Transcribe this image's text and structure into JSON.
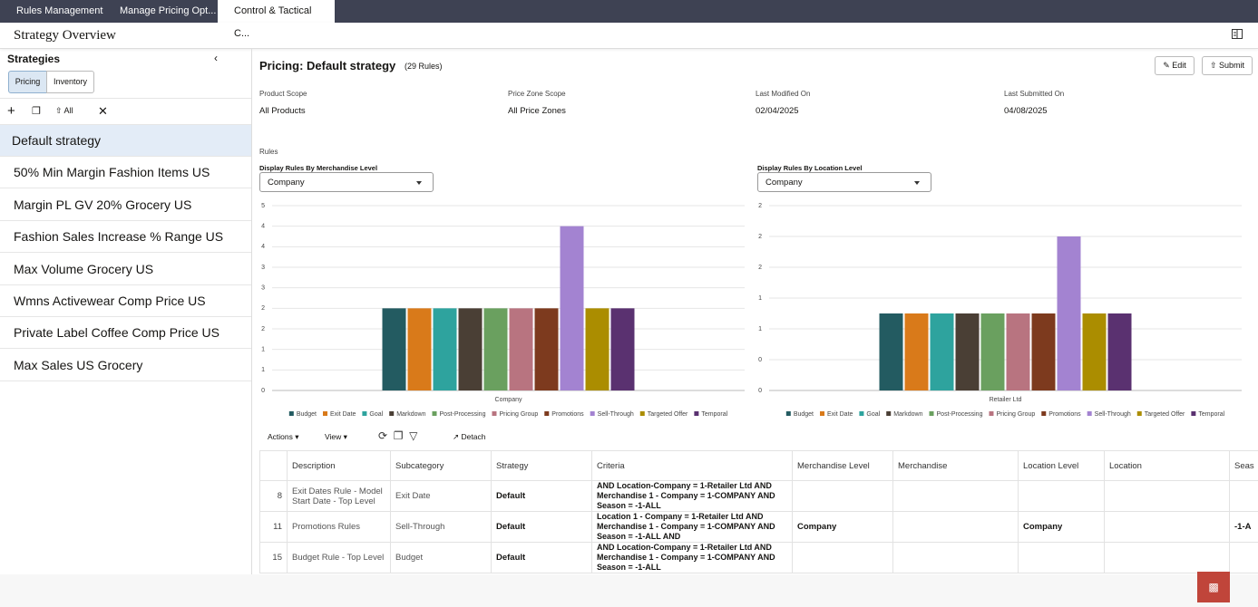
{
  "tabs": [
    "Rules Management",
    "Manage Pricing Opt...",
    "Control & Tactical C..."
  ],
  "page_title": "Strategy Overview",
  "sidebar": {
    "title": "Strategies",
    "toggles": [
      "Pricing",
      "Inventory"
    ],
    "toolbar_label": "All",
    "strategies": [
      "Default strategy",
      "50% Min Margin Fashion Items US",
      "Margin PL GV 20% Grocery US",
      "Fashion Sales Increase % Range US",
      "Max Volume Grocery US",
      "Wmns Activewear Comp Price US",
      "Private Label Coffee Comp Price US",
      "Max Sales US Grocery"
    ]
  },
  "main": {
    "title": "Pricing: Default strategy",
    "rule_count": "(29 Rules)",
    "buttons": [
      "Edit",
      "Submit"
    ],
    "fields": [
      {
        "label": "Product Scope",
        "value": "All Products"
      },
      {
        "label": "Price Zone Scope",
        "value": "All Price Zones"
      },
      {
        "label": "Last Modified On",
        "value": "02/04/2025"
      },
      {
        "label": "Last Submitted On",
        "value": "04/08/2025"
      }
    ],
    "rules_label": "Rules",
    "filters": [
      {
        "label": "Display Rules By Merchandise Level",
        "value": "Company"
      },
      {
        "label": "Display Rules By Location Level",
        "value": "Company"
      }
    ]
  },
  "chart_data": [
    {
      "type": "bar",
      "categories": [
        "Company"
      ],
      "ylim": [
        0,
        4.5
      ],
      "grid": true,
      "yticks": [
        0,
        {
          "value": 0.5,
          "label": "1"
        },
        1,
        {
          "value": 1.5,
          "label": "2"
        },
        2,
        {
          "value": 2.5,
          "label": "3"
        },
        3,
        {
          "value": 3.5,
          "label": "4"
        },
        4,
        {
          "value": 4.5,
          "label": "5"
        }
      ],
      "series": [
        {
          "name": "Budget",
          "color": "#235b61",
          "values": [
            2
          ]
        },
        {
          "name": "Exit Date",
          "color": "#d97a1a",
          "values": [
            2
          ]
        },
        {
          "name": "Goal",
          "color": "#2ea39e",
          "values": [
            2
          ]
        },
        {
          "name": "Markdown",
          "color": "#4a3f35",
          "values": [
            2
          ]
        },
        {
          "name": "Post-Processing",
          "color": "#6aa05f",
          "values": [
            2
          ]
        },
        {
          "name": "Pricing Group",
          "color": "#b87480",
          "values": [
            2
          ]
        },
        {
          "name": "Promotions",
          "color": "#7d3a1e",
          "values": [
            2
          ]
        },
        {
          "name": "Sell-Through",
          "color": "#a383d1",
          "values": [
            4
          ]
        },
        {
          "name": "Targeted Offer",
          "color": "#ab8d00",
          "values": [
            2
          ]
        },
        {
          "name": "Temporal",
          "color": "#5a3170",
          "values": [
            2
          ]
        }
      ]
    },
    {
      "type": "bar",
      "categories": [
        "Retailer Ltd"
      ],
      "ylim": [
        0,
        2.4
      ],
      "grid": true,
      "yticks": [
        0,
        {
          "value": 0.4,
          "label": "0"
        },
        {
          "value": 0.8,
          "label": "1"
        },
        {
          "value": 1.2,
          "label": "1"
        },
        {
          "value": 1.6,
          "label": "2"
        },
        2,
        {
          "value": 2.4,
          "label": "2"
        }
      ],
      "series": [
        {
          "name": "Budget",
          "color": "#235b61",
          "values": [
            1
          ]
        },
        {
          "name": "Exit Date",
          "color": "#d97a1a",
          "values": [
            1
          ]
        },
        {
          "name": "Goal",
          "color": "#2ea39e",
          "values": [
            1
          ]
        },
        {
          "name": "Markdown",
          "color": "#4a3f35",
          "values": [
            1
          ]
        },
        {
          "name": "Post-Processing",
          "color": "#6aa05f",
          "values": [
            1
          ]
        },
        {
          "name": "Pricing Group",
          "color": "#b87480",
          "values": [
            1
          ]
        },
        {
          "name": "Promotions",
          "color": "#7d3a1e",
          "values": [
            1
          ]
        },
        {
          "name": "Sell-Through",
          "color": "#a383d1",
          "values": [
            2
          ]
        },
        {
          "name": "Targeted Offer",
          "color": "#ab8d00",
          "values": [
            1
          ]
        },
        {
          "name": "Temporal",
          "color": "#5a3170",
          "values": [
            1
          ]
        }
      ]
    }
  ],
  "table": {
    "toolbar": [
      "Actions",
      "View",
      "Detach"
    ],
    "columns": [
      "Description",
      "Subcategory",
      "Strategy",
      "Criteria",
      "Merchandise Level",
      "Merchandise",
      "Location Level",
      "Location",
      "Seas"
    ],
    "rows": [
      {
        "id": 8,
        "description": "Exit Dates Rule - Model Start Date - Top Level",
        "subcategory": "Exit Date",
        "strategy": "Default",
        "criteria": "AND Location-Company = 1-Retailer Ltd AND Merchandise 1 - Company = 1-COMPANY AND Season = -1-ALL"
      },
      {
        "id": 11,
        "description": "Promotions Rules",
        "subcategory": "Sell-Through",
        "strategy": "Default",
        "criteria": "Location 1 - Company = 1-Retailer Ltd AND Merchandise 1 - Company = 1-COMPANY AND Season = -1-ALL AND",
        "merchandise_level": "Company",
        "location_level": "Company",
        "season": "-1-A"
      },
      {
        "id": 15,
        "description": "Budget Rule - Top Level",
        "subcategory": "Budget",
        "strategy": "Default",
        "criteria": "AND Location-Company = 1-Retailer Ltd AND Merchandise 1 - Company = 1-COMPANY AND Season = -1-ALL"
      }
    ]
  }
}
